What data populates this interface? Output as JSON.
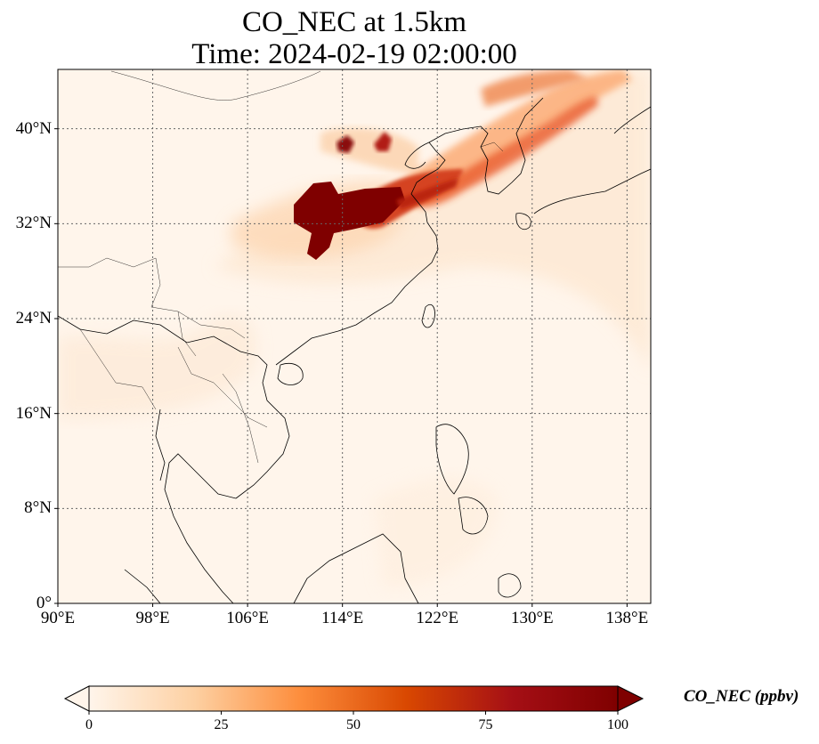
{
  "title_line1": "CO_NEC at 1.5km",
  "title_line2": "Time: 2024-02-19 02:00:00",
  "map": {
    "lon_range": [
      90,
      140
    ],
    "lat_range": [
      0,
      45
    ],
    "gridlines": "dotted",
    "lat_ticks": [
      {
        "value": 0,
        "label": "0°"
      },
      {
        "value": 8,
        "label": "8°N"
      },
      {
        "value": 16,
        "label": "16°N"
      },
      {
        "value": 24,
        "label": "24°N"
      },
      {
        "value": 32,
        "label": "32°N"
      },
      {
        "value": 40,
        "label": "40°N"
      }
    ],
    "lon_ticks": [
      {
        "value": 90,
        "label": "90°E"
      },
      {
        "value": 98,
        "label": "98°E"
      },
      {
        "value": 106,
        "label": "106°E"
      },
      {
        "value": 114,
        "label": "114°E"
      },
      {
        "value": 122,
        "label": "122°E"
      },
      {
        "value": 130,
        "label": "130°E"
      },
      {
        "value": 138,
        "label": "138°E"
      }
    ]
  },
  "colorbar": {
    "label": "CO_NEC (ppbv)",
    "range": [
      0,
      100
    ],
    "extend": "both",
    "colormap": [
      "#fff5eb",
      "#fdd0a2",
      "#fd8d3c",
      "#d94801",
      "#a50f15",
      "#7f0000"
    ],
    "ticks": [
      {
        "value": 0,
        "label": "0"
      },
      {
        "value": 25,
        "label": "25"
      },
      {
        "value": 50,
        "label": "50"
      },
      {
        "value": 75,
        "label": "75"
      },
      {
        "value": 100,
        "label": "100"
      }
    ]
  }
}
